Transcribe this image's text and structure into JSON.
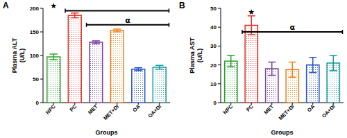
{
  "chart_data": [
    {
      "type": "bar",
      "title": "A",
      "y_label": "Plasma ALT (U/L)",
      "x_label": "Groups",
      "categories": [
        "NPC",
        "PC",
        "MET",
        "MET+DI",
        "OA",
        "OA+DI"
      ],
      "values": [
        97,
        185,
        128,
        153,
        71,
        75
      ],
      "errors": [
        6,
        5,
        3,
        3,
        3,
        4
      ],
      "colors": [
        "#2ca02c",
        "#e0352b",
        "#7b3fa0",
        "#f07f1a",
        "#2a57c8",
        "#1a9aa0"
      ],
      "ylim": [
        0,
        200
      ],
      "yticks": [
        0,
        50,
        100,
        150,
        200
      ],
      "annotations": [
        {
          "text": "★",
          "from": 1,
          "to": 5,
          "label_at": 0,
          "y": 195
        },
        {
          "text": "α",
          "from": 2,
          "to": 5,
          "label_at": 3.5,
          "y": 165
        }
      ]
    },
    {
      "type": "bar",
      "title": "B",
      "y_label": "Plasma AST (U/L)",
      "x_label": "Groups",
      "categories": [
        "NPC",
        "PC",
        "MET",
        "MET+DI",
        "OA",
        "OA+DI"
      ],
      "values": [
        22,
        41,
        18,
        17.5,
        20,
        21
      ],
      "errors": [
        3,
        5,
        3.5,
        4,
        4,
        4
      ],
      "colors": [
        "#2ca02c",
        "#e0352b",
        "#7b3fa0",
        "#f07f1a",
        "#2a57c8",
        "#1a9aa0"
      ],
      "ylim": [
        0,
        50
      ],
      "yticks": [
        0,
        10,
        20,
        30,
        40,
        50
      ],
      "annotations": [
        {
          "text": "★",
          "label_at": 1,
          "y": 48
        },
        {
          "text": "α",
          "from": 1,
          "to": 5,
          "label_at": 3,
          "y": 37.5
        }
      ]
    }
  ]
}
